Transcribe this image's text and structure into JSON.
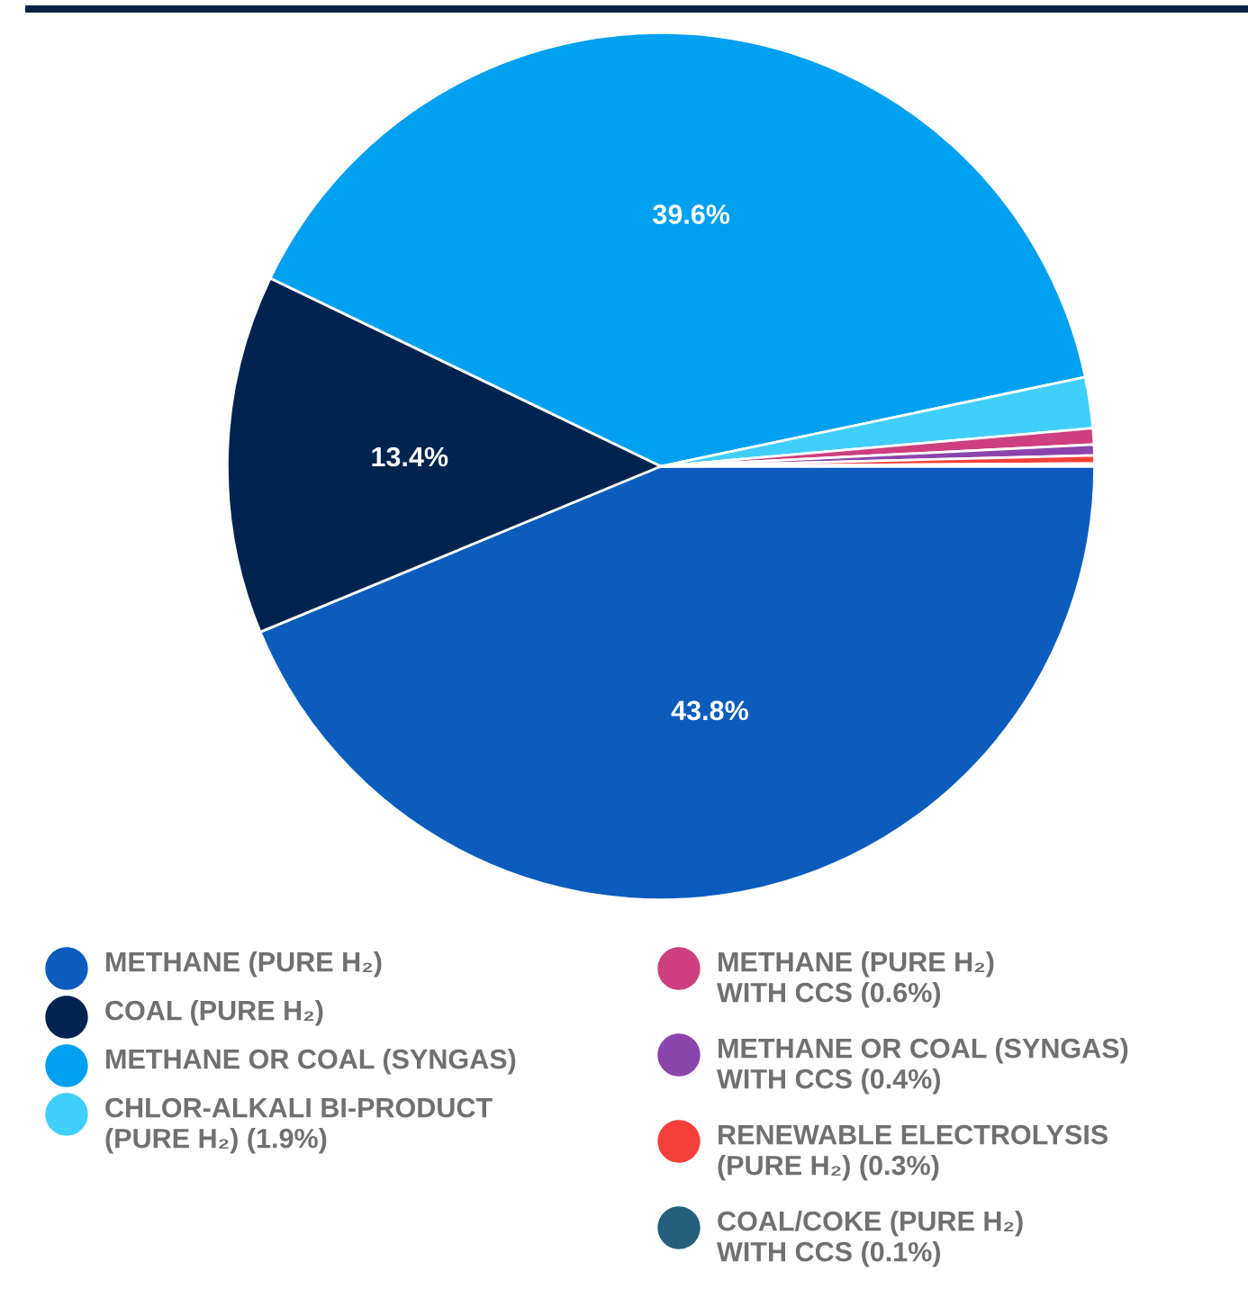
{
  "chart_data": {
    "type": "pie",
    "categories": [
      "METHANE (PURE H₂)",
      "COAL (PURE H₂)",
      "METHANE OR COAL (SYNGAS)",
      "CHLOR-ALKALI BI-PRODUCT\n(PURE H₂) (1.9%)",
      "METHANE (PURE H₂)\nWITH CCS (0.6%)",
      "METHANE OR COAL (SYNGAS)\nWITH CCS (0.4%)",
      "RENEWABLE ELECTROLYSIS\n(PURE H₂) (0.3%)",
      "COAL/COKE (PURE H₂)\nWITH CCS (0.1%)"
    ],
    "values": [
      43.8,
      13.4,
      39.6,
      1.9,
      0.6,
      0.4,
      0.3,
      0.1
    ],
    "colors": [
      "#0b5cbd",
      "#00244f",
      "#00a0f0",
      "#40cffa",
      "#cd3f7e",
      "#8b44ac",
      "#f5403a",
      "#255f7c"
    ],
    "value_labels": [
      "43.8%",
      "13.4%",
      "39.6%",
      null,
      null,
      null,
      null,
      null
    ],
    "legend": "bottom"
  }
}
